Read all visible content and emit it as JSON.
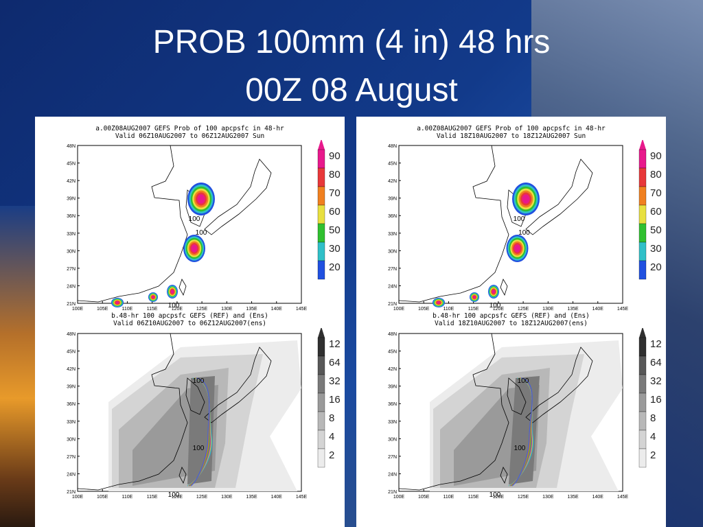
{
  "slide": {
    "title_line1": "PROB 100mm (4 in) 48 hrs",
    "title_line2": "00Z 08 August"
  },
  "left_panel": {
    "top_title_1": "a.00Z08AUG2007 GEFS Prob of 100 apcpsfc in 48-hr",
    "top_title_2": "Valid 06Z10AUG2007 to 06Z12AUG2007 Sun",
    "bottom_title_1": "b.48-hr 100 apcpsfc GEFS (REF) and (Ens)",
    "bottom_title_2": "Valid 06Z10AUG2007 to 06Z12AUG2007(ens)"
  },
  "right_panel": {
    "top_title_1": "a.00Z08AUG2007 GEFS Prob of 100 apcpsfc in 48-hr",
    "top_title_2": "Valid 18Z10AUG2007 to 18Z12AUG2007 Sun",
    "bottom_title_1": "b.48-hr 100 apcpsfc GEFS (REF) and (Ens)",
    "bottom_title_2": "Valid 18Z10AUG2007 to 18Z12AUG2007(ens)"
  },
  "lat_labels": [
    "48N",
    "45N",
    "42N",
    "39N",
    "36N",
    "33N",
    "30N",
    "27N",
    "24N",
    "21N"
  ],
  "lon_labels": [
    "100E",
    "105E",
    "110E",
    "115E",
    "120E",
    "125E",
    "130E",
    "135E",
    "140E",
    "145E"
  ],
  "prob_legend": [
    "90",
    "80",
    "70",
    "60",
    "50",
    "30",
    "20"
  ],
  "prob_colors": [
    "#e8198c",
    "#e8383a",
    "#f08020",
    "#e8e040",
    "#30c030",
    "#30c0c8",
    "#2050e0"
  ],
  "amount_legend": [
    "12",
    "64",
    "32",
    "16",
    "8",
    "4",
    "2"
  ],
  "amount_colors": [
    "#303030",
    "#585858",
    "#7a7a7a",
    "#9a9a9a",
    "#b8b8b8",
    "#d4d4d4",
    "#ececec"
  ],
  "contour_label": "100"
}
